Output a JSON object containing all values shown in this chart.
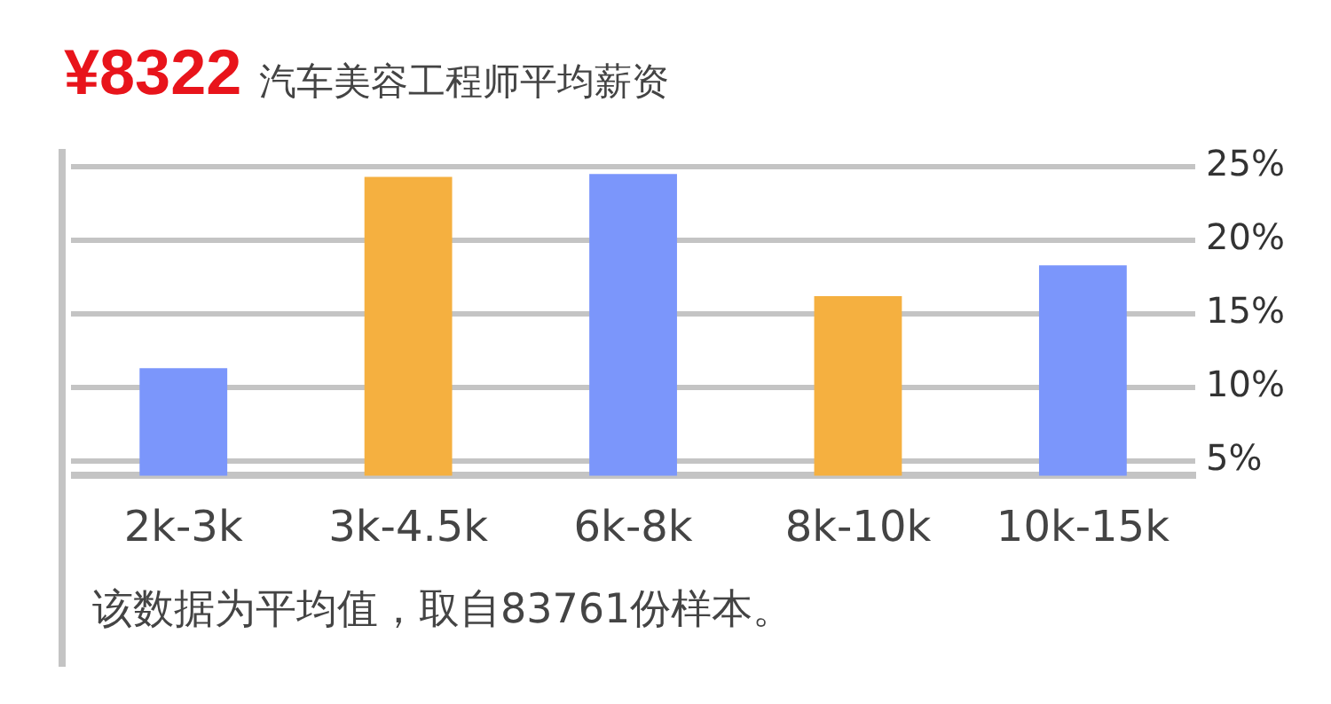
{
  "chart_data": {
    "type": "bar",
    "title": "¥8322",
    "subtitle": "汽车美容工程师平均薪资",
    "categories": [
      "2k-3k",
      "3k-4.5k",
      "6k-8k",
      "8k-10k",
      "10k-15k"
    ],
    "values": [
      11.3,
      24.3,
      24.5,
      16.2,
      18.3
    ],
    "colors": [
      "#7b96fb",
      "#f5b040",
      "#7b96fb",
      "#f5b040",
      "#7b96fb"
    ],
    "ylim": [
      4,
      25
    ],
    "yticks": [
      {
        "value": 5,
        "label": "5%"
      },
      {
        "value": 10,
        "label": "10%"
      },
      {
        "value": 15,
        "label": "15%"
      },
      {
        "value": 20,
        "label": "20%"
      },
      {
        "value": 25,
        "label": "25%"
      }
    ],
    "grid": "y",
    "annotations": [
      "该数据为平均值，取自83761份样本。"
    ]
  }
}
